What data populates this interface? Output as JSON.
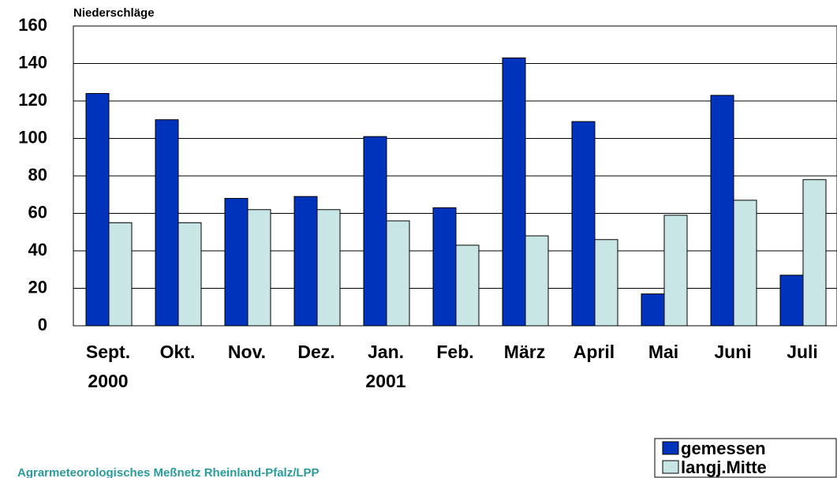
{
  "chart_data": {
    "type": "bar",
    "title": "Niederschläge",
    "footer": "Agrarmeteorologisches Meßnetz Rheinland-Pfalz/LPP",
    "categories": [
      "Sept.\n2000",
      "Okt.",
      "Nov.",
      "Dez.",
      "Jan.\n2001",
      "Feb.",
      "März",
      "April",
      "Mai",
      "Juni",
      "Juli"
    ],
    "series": [
      {
        "name": "gemessen",
        "color": "#0033bb",
        "values": [
          124,
          110,
          68,
          69,
          101,
          63,
          143,
          109,
          17,
          123,
          27
        ]
      },
      {
        "name": "langj.Mitte",
        "color": "#c8e6e6",
        "values": [
          55,
          55,
          62,
          62,
          56,
          43,
          48,
          46,
          59,
          67,
          78
        ]
      }
    ],
    "ylim": [
      0,
      160
    ],
    "yticks": [
      0,
      20,
      40,
      60,
      80,
      100,
      120,
      140,
      160
    ],
    "grid": true,
    "legend": "bottom-right"
  }
}
